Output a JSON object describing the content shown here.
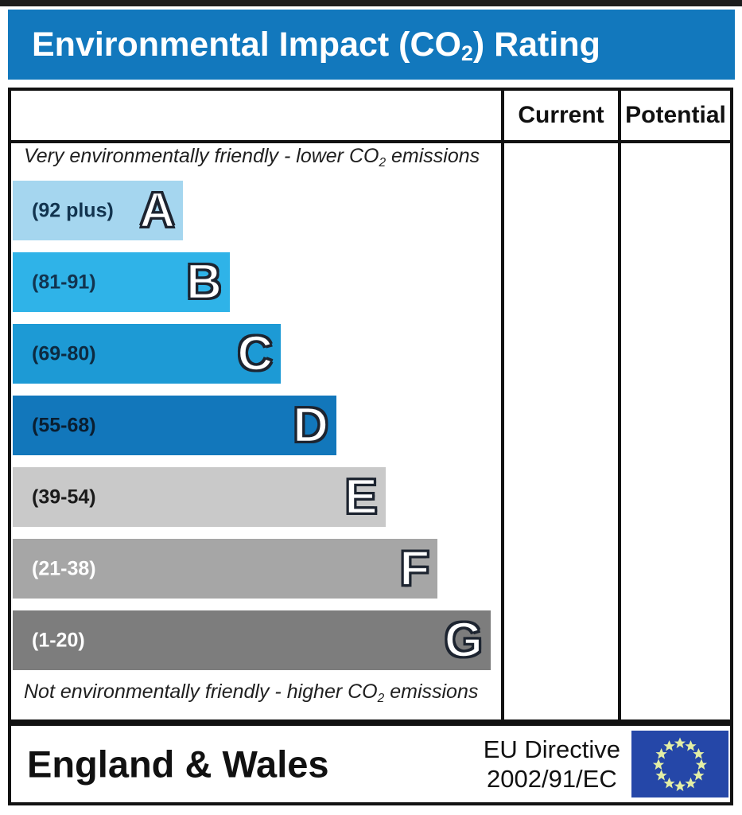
{
  "title": {
    "prefix": "Environmental Impact (CO",
    "sub": "2",
    "suffix": ") Rating",
    "bar_color": "#1278bd",
    "text_color": "#ffffff"
  },
  "table": {
    "border_color": "#121212",
    "columns": {
      "current": "Current",
      "potential": "Potential"
    },
    "top_note": {
      "prefix": "Very environmentally friendly - lower CO",
      "sub": "2",
      "suffix": " emissions"
    },
    "bottom_note": {
      "prefix": "Not environmentally friendly - higher CO",
      "sub": "2",
      "suffix": " emissions"
    }
  },
  "footer": {
    "region": "England & Wales",
    "directive_line1": "EU Directive",
    "directive_line2": "2002/91/EC",
    "flag": {
      "icon": "eu-flag-icon",
      "background": "#2547a8",
      "star_color": "#e4efa5"
    }
  },
  "chart_data": {
    "type": "bar",
    "orientation": "horizontal",
    "title": "Environmental Impact (CO2) Rating",
    "top_annotation": "Very environmentally friendly - lower CO2 emissions",
    "bottom_annotation": "Not environmentally friendly - higher CO2 emissions",
    "value_columns": [
      "Current",
      "Potential"
    ],
    "current_column_empty": true,
    "potential_column_empty": true,
    "bands": [
      {
        "letter": "A",
        "range": "(92 plus)",
        "min": 92,
        "max": 100,
        "color": "#a5d6ef",
        "label_color": "#12344f",
        "width_pct": 35.0
      },
      {
        "letter": "B",
        "range": "(81-91)",
        "min": 81,
        "max": 91,
        "color": "#2fb3e8",
        "label_color": "#12344f",
        "width_pct": 44.6
      },
      {
        "letter": "C",
        "range": "(69-80)",
        "min": 69,
        "max": 80,
        "color": "#1d9ad5",
        "label_color": "#0d2a40",
        "width_pct": 55.1
      },
      {
        "letter": "D",
        "range": "(55-68)",
        "min": 55,
        "max": 68,
        "color": "#1277bb",
        "label_color": "#0a1e30",
        "width_pct": 66.5
      },
      {
        "letter": "E",
        "range": "(39-54)",
        "min": 39,
        "max": 54,
        "color": "#c9c9c9",
        "label_color": "#1a1a1a",
        "width_pct": 76.6
      },
      {
        "letter": "F",
        "range": "(21-38)",
        "min": 21,
        "max": 38,
        "color": "#a6a6a6",
        "label_color": "#ffffff",
        "width_pct": 87.3
      },
      {
        "letter": "G",
        "range": "(1-20)",
        "min": 1,
        "max": 20,
        "color": "#7d7d7d",
        "label_color": "#ffffff",
        "width_pct": 98.2
      }
    ]
  }
}
